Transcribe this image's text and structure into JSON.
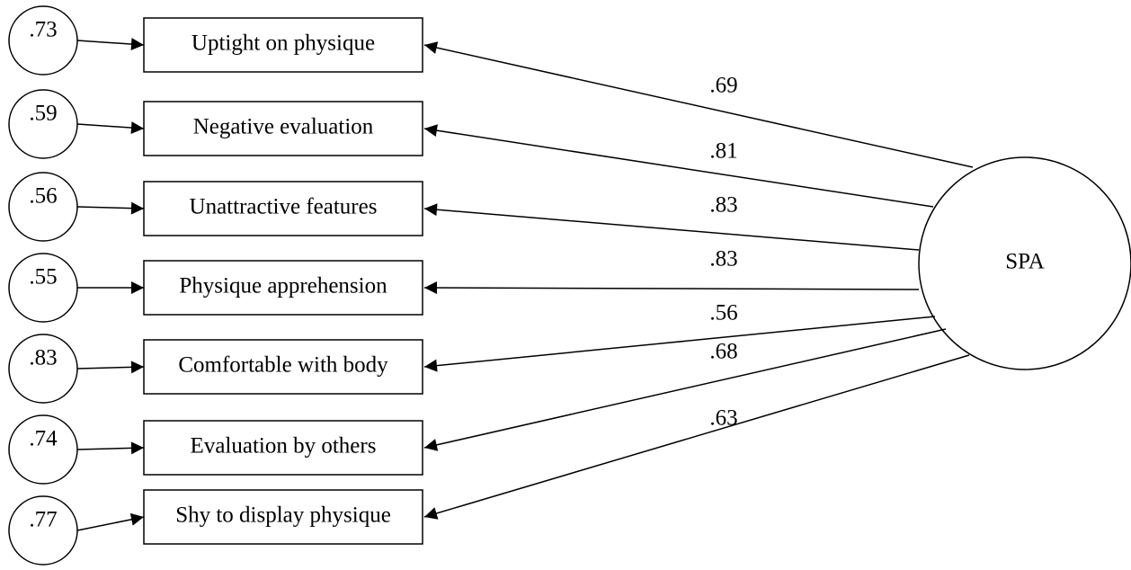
{
  "latent": {
    "label": "SPA"
  },
  "items": [
    {
      "error": ".73",
      "label": "Uptight on physique",
      "loading": ".69"
    },
    {
      "error": ".59",
      "label": "Negative evaluation",
      "loading": ".81"
    },
    {
      "error": ".56",
      "label": "Unattractive features",
      "loading": ".83"
    },
    {
      "error": ".55",
      "label": "Physique apprehension",
      "loading": ".83"
    },
    {
      "error": ".83",
      "label": "Comfortable with body",
      "loading": ".56"
    },
    {
      "error": ".74",
      "label": "Evaluation by others",
      "loading": ".68"
    },
    {
      "error": ".77",
      "label": "Shy to display physique",
      "loading": ".63"
    }
  ]
}
